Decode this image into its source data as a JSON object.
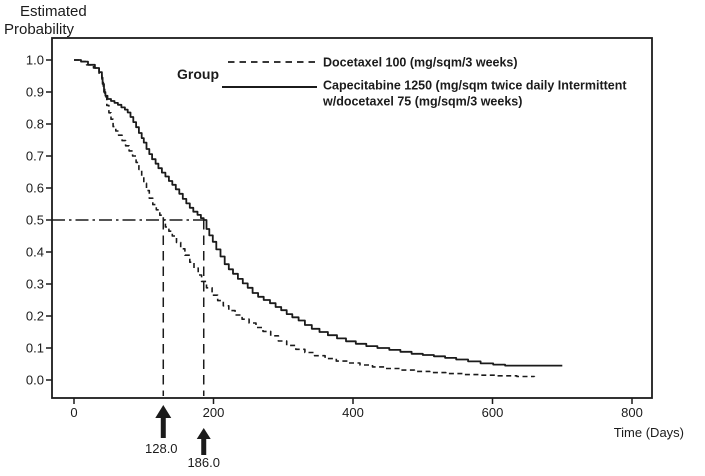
{
  "figure": {
    "y_axis_title_line1": "Estimated",
    "y_axis_title_line2": "Probability",
    "x_axis_title": "Time (Days)",
    "group_label": "Group"
  },
  "legend": {
    "docetaxel_label": "Docetaxel 100 (mg/sqm/3 weeks)",
    "capecitabine_label_line1": "Capecitabine 1250 (mg/sqm twice daily Intermittent",
    "capecitabine_label_line2": "w/docetaxel 75 (mg/sqm/3 weeks)"
  },
  "colors": {
    "line": "#1b1b1b",
    "text": "#1b1b1b",
    "background": "#ffffff"
  },
  "chart_data": {
    "type": "line",
    "subtype": "kaplan-meier-step",
    "title": "",
    "xlabel": "Time (Days)",
    "ylabel": "Estimated Probability",
    "xlim": [
      0,
      800
    ],
    "ylim": [
      0.0,
      1.0
    ],
    "x_ticks": [
      0,
      200,
      400,
      600,
      800
    ],
    "y_ticks": [
      "1.0",
      "0.9",
      "0.8",
      "0.7",
      "0.6",
      "0.5",
      "0.4",
      "0.3",
      "0.2",
      "0.1",
      "0.0"
    ],
    "grid": false,
    "legend_position": "top-right-inside",
    "reference_probability": 0.5,
    "medians": [
      {
        "series": "Docetaxel 100 (mg/sqm/3 weeks)",
        "median_days": 128.0,
        "label": "128.0"
      },
      {
        "series": "Capecitabine 1250 (mg/sqm twice daily Intermittent w/docetaxel 75 (mg/sqm/3 weeks)",
        "median_days": 186.0,
        "label": "186.0"
      }
    ],
    "series": [
      {
        "name": "Docetaxel 100 (mg/sqm/3 weeks)",
        "line_style": "dashed",
        "color": "#1b1b1b",
        "points": [
          [
            0,
            1.0
          ],
          [
            8,
            0.995
          ],
          [
            18,
            0.985
          ],
          [
            28,
            0.975
          ],
          [
            36,
            0.955
          ],
          [
            40,
            0.935
          ],
          [
            42,
            0.91
          ],
          [
            44,
            0.885
          ],
          [
            47,
            0.858
          ],
          [
            50,
            0.835
          ],
          [
            53,
            0.815
          ],
          [
            56,
            0.792
          ],
          [
            60,
            0.778
          ],
          [
            64,
            0.765
          ],
          [
            69,
            0.748
          ],
          [
            74,
            0.732
          ],
          [
            79,
            0.716
          ],
          [
            84,
            0.7
          ],
          [
            89,
            0.68
          ],
          [
            93,
            0.658
          ],
          [
            97,
            0.636
          ],
          [
            100,
            0.615
          ],
          [
            104,
            0.592
          ],
          [
            108,
            0.568
          ],
          [
            113,
            0.548
          ],
          [
            118,
            0.532
          ],
          [
            123,
            0.515
          ],
          [
            128,
            0.5
          ],
          [
            131,
            0.478
          ],
          [
            136,
            0.465
          ],
          [
            141,
            0.45
          ],
          [
            147,
            0.43
          ],
          [
            153,
            0.41
          ],
          [
            159,
            0.39
          ],
          [
            166,
            0.368
          ],
          [
            172,
            0.35
          ],
          [
            178,
            0.328
          ],
          [
            183,
            0.308
          ],
          [
            190,
            0.288
          ],
          [
            198,
            0.265
          ],
          [
            206,
            0.248
          ],
          [
            214,
            0.232
          ],
          [
            222,
            0.217
          ],
          [
            231,
            0.203
          ],
          [
            241,
            0.19
          ],
          [
            251,
            0.178
          ],
          [
            261,
            0.164
          ],
          [
            271,
            0.152
          ],
          [
            282,
            0.138
          ],
          [
            293,
            0.122
          ],
          [
            305,
            0.108
          ],
          [
            318,
            0.096
          ],
          [
            331,
            0.086
          ],
          [
            345,
            0.076
          ],
          [
            360,
            0.067
          ],
          [
            376,
            0.059
          ],
          [
            392,
            0.053
          ],
          [
            410,
            0.047
          ],
          [
            428,
            0.041
          ],
          [
            447,
            0.036
          ],
          [
            467,
            0.031
          ],
          [
            488,
            0.027
          ],
          [
            510,
            0.023
          ],
          [
            533,
            0.02
          ],
          [
            557,
            0.017
          ],
          [
            582,
            0.015
          ],
          [
            608,
            0.013
          ],
          [
            635,
            0.011
          ],
          [
            660,
            0.01
          ]
        ]
      },
      {
        "name": "Capecitabine 1250 (mg/sqm twice daily Intermittent w/docetaxel 75 (mg/sqm/3 weeks)",
        "line_style": "solid",
        "color": "#1b1b1b",
        "points": [
          [
            0,
            1.0
          ],
          [
            10,
            0.995
          ],
          [
            20,
            0.985
          ],
          [
            30,
            0.975
          ],
          [
            36,
            0.962
          ],
          [
            40,
            0.945
          ],
          [
            41,
            0.925
          ],
          [
            43,
            0.9
          ],
          [
            45,
            0.888
          ],
          [
            48,
            0.878
          ],
          [
            53,
            0.872
          ],
          [
            58,
            0.866
          ],
          [
            63,
            0.86
          ],
          [
            68,
            0.852
          ],
          [
            73,
            0.845
          ],
          [
            77,
            0.836
          ],
          [
            81,
            0.822
          ],
          [
            85,
            0.806
          ],
          [
            89,
            0.79
          ],
          [
            93,
            0.772
          ],
          [
            97,
            0.756
          ],
          [
            100,
            0.742
          ],
          [
            104,
            0.722
          ],
          [
            108,
            0.706
          ],
          [
            112,
            0.69
          ],
          [
            117,
            0.676
          ],
          [
            121,
            0.662
          ],
          [
            126,
            0.648
          ],
          [
            131,
            0.636
          ],
          [
            136,
            0.622
          ],
          [
            141,
            0.61
          ],
          [
            146,
            0.596
          ],
          [
            151,
            0.582
          ],
          [
            156,
            0.566
          ],
          [
            161,
            0.552
          ],
          [
            166,
            0.538
          ],
          [
            171,
            0.526
          ],
          [
            177,
            0.516
          ],
          [
            182,
            0.506
          ],
          [
            186,
            0.5
          ],
          [
            190,
            0.472
          ],
          [
            194,
            0.452
          ],
          [
            199,
            0.432
          ],
          [
            204,
            0.408
          ],
          [
            210,
            0.386
          ],
          [
            216,
            0.362
          ],
          [
            222,
            0.346
          ],
          [
            228,
            0.332
          ],
          [
            235,
            0.316
          ],
          [
            242,
            0.302
          ],
          [
            249,
            0.288
          ],
          [
            256,
            0.272
          ],
          [
            264,
            0.26
          ],
          [
            272,
            0.25
          ],
          [
            281,
            0.24
          ],
          [
            289,
            0.228
          ],
          [
            297,
            0.218
          ],
          [
            305,
            0.206
          ],
          [
            313,
            0.196
          ],
          [
            322,
            0.186
          ],
          [
            331,
            0.172
          ],
          [
            341,
            0.16
          ],
          [
            352,
            0.15
          ],
          [
            364,
            0.14
          ],
          [
            377,
            0.13
          ],
          [
            390,
            0.121
          ],
          [
            404,
            0.113
          ],
          [
            419,
            0.106
          ],
          [
            435,
            0.1
          ],
          [
            452,
            0.094
          ],
          [
            468,
            0.088
          ],
          [
            484,
            0.082
          ],
          [
            500,
            0.078
          ],
          [
            516,
            0.074
          ],
          [
            532,
            0.069
          ],
          [
            548,
            0.064
          ],
          [
            565,
            0.058
          ],
          [
            583,
            0.052
          ],
          [
            601,
            0.048
          ],
          [
            618,
            0.045
          ],
          [
            700,
            0.045
          ]
        ]
      }
    ]
  }
}
